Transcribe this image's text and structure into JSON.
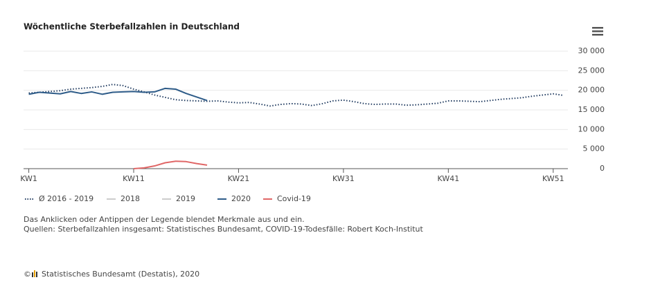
{
  "chart_data": {
    "type": "line",
    "title": "Wöchentliche Sterbefallzahlen in Deutschland",
    "x": [
      1,
      2,
      3,
      4,
      5,
      6,
      7,
      8,
      9,
      10,
      11,
      12,
      13,
      14,
      15,
      16,
      17,
      18,
      19,
      20,
      21,
      22,
      23,
      24,
      25,
      26,
      27,
      28,
      29,
      30,
      31,
      32,
      33,
      34,
      35,
      36,
      37,
      38,
      39,
      40,
      41,
      42,
      43,
      44,
      45,
      46,
      47,
      48,
      49,
      50,
      51,
      52
    ],
    "xlim": [
      0.5,
      52.4
    ],
    "xticks": [
      {
        "value": 1,
        "label": "KW1"
      },
      {
        "value": 11,
        "label": "KW11"
      },
      {
        "value": 21,
        "label": "KW21"
      },
      {
        "value": 31,
        "label": "KW31"
      },
      {
        "value": 41,
        "label": "KW41"
      },
      {
        "value": 51,
        "label": "KW51"
      }
    ],
    "ylim": [
      0,
      30000
    ],
    "yticks": [
      0,
      {
        "value": 5000,
        "label": "5 000"
      },
      {
        "value": 10000,
        "label": "10 000"
      },
      {
        "value": 15000,
        "label": "15 000"
      },
      {
        "value": 20000,
        "label": "20 000"
      },
      {
        "value": 25000,
        "label": "25 000"
      },
      {
        "value": 30000,
        "label": "30 000"
      }
    ],
    "grid": true,
    "series": [
      {
        "name": "Ø 2016 - 2019",
        "color": "#1f3a5f",
        "dash": "dotted",
        "visible": true,
        "values": [
          19300,
          19500,
          19700,
          19900,
          20300,
          20500,
          20700,
          21000,
          21500,
          21200,
          20300,
          19600,
          18800,
          18200,
          17600,
          17400,
          17300,
          17200,
          17300,
          17000,
          16800,
          16900,
          16500,
          16000,
          16400,
          16600,
          16500,
          16100,
          16600,
          17300,
          17500,
          17100,
          16600,
          16400,
          16500,
          16500,
          16200,
          16300,
          16500,
          16700,
          17300,
          17300,
          17200,
          17100,
          17400,
          17700,
          17900,
          18100,
          18500,
          18800,
          19100,
          18700
        ]
      },
      {
        "name": "2018",
        "color": "#bbbbbb",
        "visible": false
      },
      {
        "name": "2019",
        "color": "#bbbbbb",
        "visible": false
      },
      {
        "name": "2020",
        "color": "#2d5b88",
        "visible": true,
        "values": [
          19000,
          19500,
          19300,
          19100,
          19700,
          19200,
          19600,
          19000,
          19500,
          19600,
          19700,
          19500,
          19600,
          20500,
          20300,
          19200,
          18300,
          17400,
          null,
          null,
          null,
          null,
          null,
          null,
          null,
          null,
          null,
          null,
          null,
          null,
          null,
          null,
          null,
          null,
          null,
          null,
          null,
          null,
          null,
          null,
          null,
          null,
          null,
          null,
          null,
          null,
          null,
          null,
          null,
          null,
          null,
          null
        ]
      },
      {
        "name": "Covid-19",
        "color": "#e06666",
        "visible": true,
        "values": [
          null,
          null,
          null,
          null,
          null,
          null,
          null,
          null,
          null,
          null,
          0,
          200,
          700,
          1500,
          1900,
          1800,
          1300,
          900,
          null,
          null,
          null,
          null,
          null,
          null,
          null,
          null,
          null,
          null,
          null,
          null,
          null,
          null,
          null,
          null,
          null,
          null,
          null,
          null,
          null,
          null,
          null,
          null,
          null,
          null,
          null,
          null,
          null,
          null,
          null,
          null,
          null,
          null
        ]
      }
    ],
    "notes": [
      "Das Anklicken oder Antippen der Legende blendet Merkmale aus und ein.",
      "Quellen: Sterbefallzahlen insgesamt: Statistisches Bundesamt, COVID-19-Todesfälle: Robert Koch-Institut"
    ],
    "credit_symbol": "©",
    "credit": "Statistisches Bundesamt (Destatis), 2020"
  }
}
